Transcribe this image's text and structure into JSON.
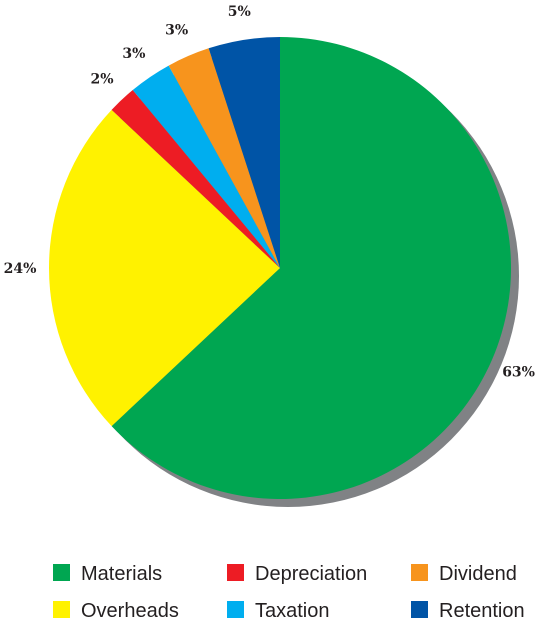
{
  "chart_data": {
    "type": "pie",
    "start_angle_deg": 0,
    "direction": "clockwise",
    "shadow": true,
    "slices": [
      {
        "name": "Materials",
        "value": 63,
        "label": "63%",
        "color": "#00a651"
      },
      {
        "name": "Overheads",
        "value": 24,
        "label": "24%",
        "color": "#fff200"
      },
      {
        "name": "Depreciation",
        "value": 2,
        "label": "2%",
        "color": "#ed1c24"
      },
      {
        "name": "Taxation",
        "value": 3,
        "label": "3%",
        "color": "#00aeef"
      },
      {
        "name": "Dividend",
        "value": 3,
        "label": "3%",
        "color": "#f7941d"
      },
      {
        "name": "Retention",
        "value": 5,
        "label": "5%",
        "color": "#0054a6"
      }
    ],
    "legend": {
      "placement": "bottom",
      "columns": [
        [
          "Materials",
          "Overheads"
        ],
        [
          "Depreciation",
          "Taxation"
        ],
        [
          "Dividend",
          "Retention"
        ]
      ]
    }
  }
}
